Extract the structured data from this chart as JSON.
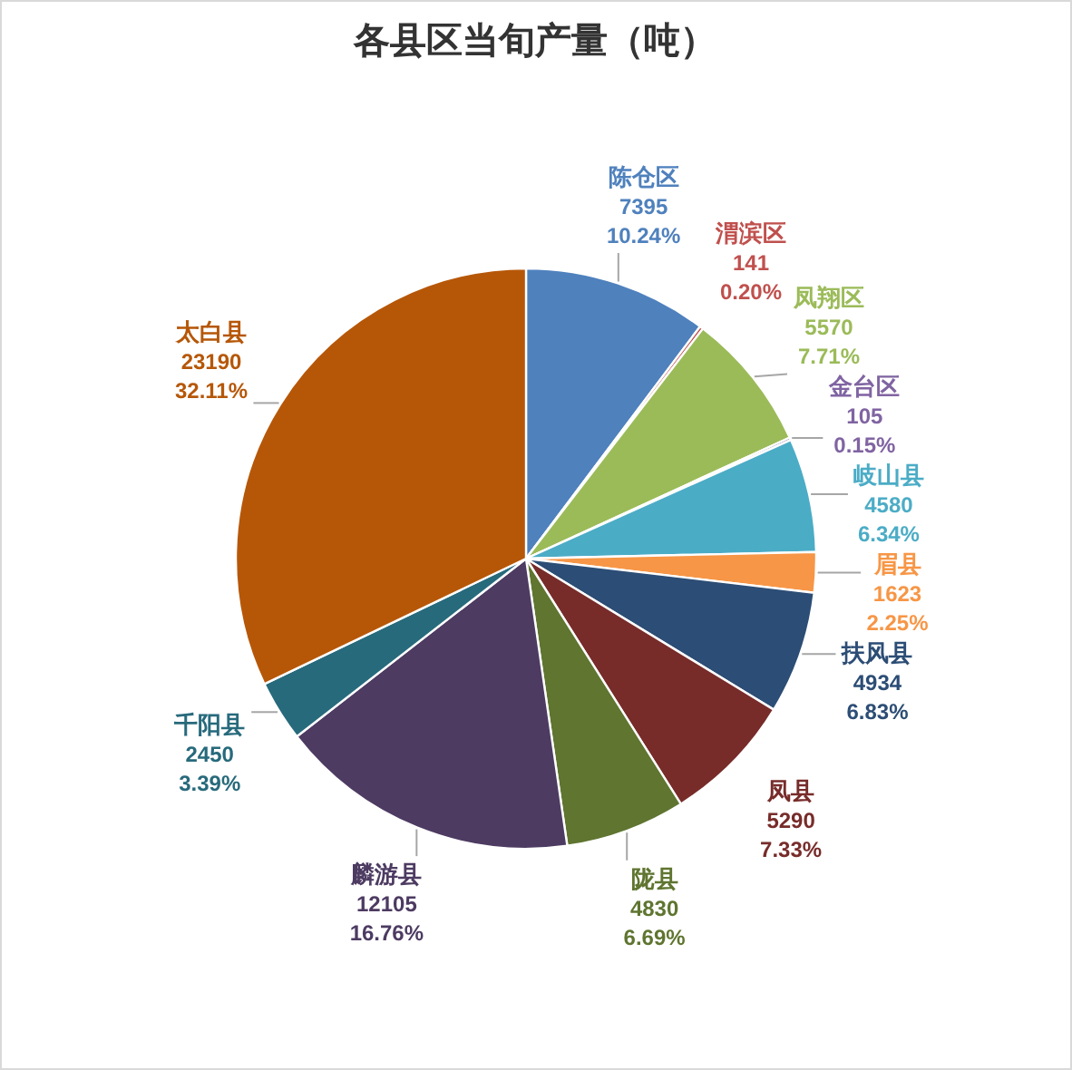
{
  "chart_data": {
    "type": "pie",
    "title": "各县区当旬产量（吨）",
    "categories": [
      "陈仓区",
      "渭滨区",
      "凤翔区",
      "金台区",
      "岐山县",
      "眉县",
      "扶风县",
      "凤县",
      "陇县",
      "麟游县",
      "千阳县",
      "太白县"
    ],
    "values": [
      7395,
      141,
      5570,
      105,
      4580,
      1623,
      4934,
      5290,
      4830,
      12105,
      2450,
      23190
    ],
    "colors": [
      "#4f81bd",
      "#c0504d",
      "#9bbb59",
      "#8064a2",
      "#4bacc6",
      "#f79646",
      "#2c4d75",
      "#772c2a",
      "#5f7530",
      "#4d3b62",
      "#276a7c",
      "#b65708"
    ],
    "value_labels": [
      "7395\n10.24%",
      "141\n0.20%",
      "5570\n7.71%",
      "105\n0.15%",
      "4580\n6.34%",
      "1623\n2.25%",
      "4934\n6.83%",
      "5290\n7.33%",
      "4830\n6.69%",
      "12105\n16.76%",
      "2450\n3.39%",
      "23190\n32.11%"
    ]
  }
}
